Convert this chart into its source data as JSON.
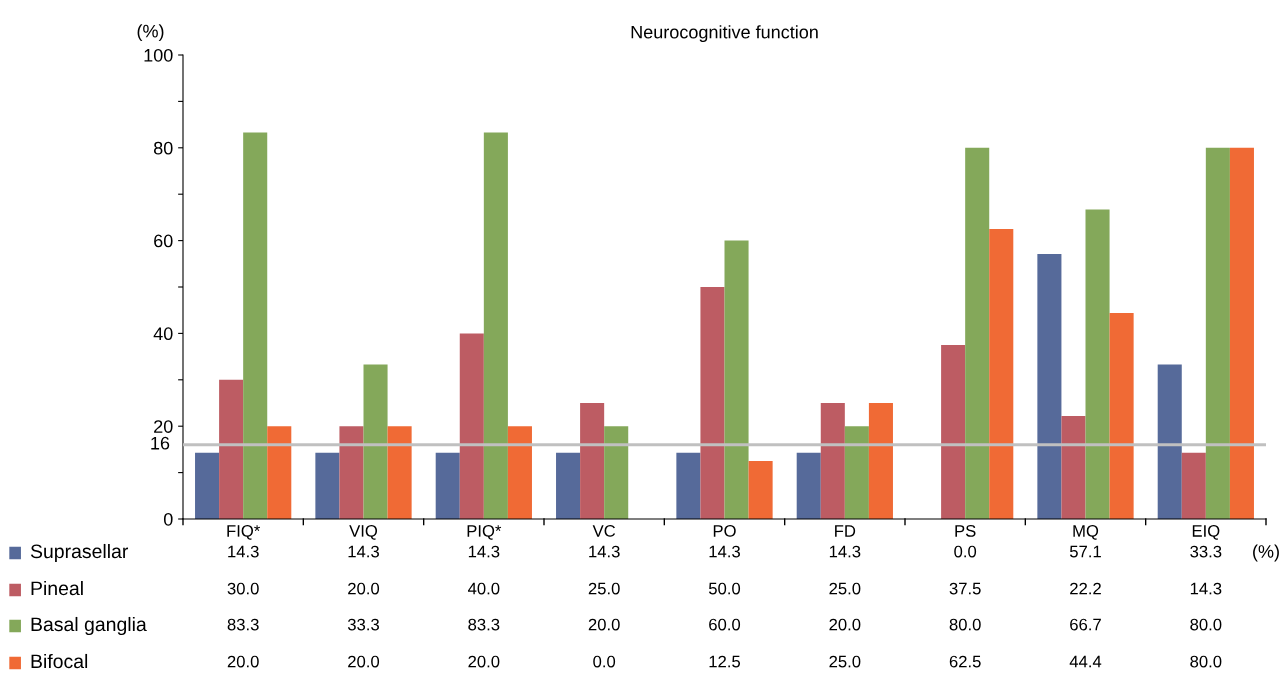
{
  "chart_data": {
    "type": "bar",
    "title": "Neurocognitive function",
    "ylabel": "(%)",
    "categories": [
      "FIQ*",
      "VIQ",
      "PIQ*",
      "VC",
      "PO",
      "FD",
      "PS",
      "MQ",
      "EIQ"
    ],
    "series": [
      {
        "name": "Suprasellar",
        "color": "#566a9a",
        "values": [
          14.3,
          14.3,
          14.3,
          14.3,
          14.3,
          14.3,
          0.0,
          57.1,
          33.3
        ],
        "value_labels": [
          "14.3",
          "14.3",
          "14.3",
          "14.3",
          "14.3",
          "14.3",
          "0.0",
          "57.1",
          "33.3"
        ]
      },
      {
        "name": "Pineal",
        "color": "#bd5c63",
        "values": [
          30.0,
          20.0,
          40.0,
          25.0,
          50.0,
          25.0,
          37.5,
          22.2,
          14.3
        ],
        "value_labels": [
          "30.0",
          "20.0",
          "40.0",
          "25.0",
          "50.0",
          "25.0",
          "37.5",
          "22.2",
          "14.3"
        ]
      },
      {
        "name": "Basal ganglia",
        "color": "#84a85a",
        "values": [
          83.3,
          33.3,
          83.3,
          20.0,
          60.0,
          20.0,
          80.0,
          66.7,
          80.0
        ],
        "value_labels": [
          "83.3",
          "33.3",
          "83.3",
          "20.0",
          "60.0",
          "20.0",
          "80.0",
          "66.7",
          "80.0"
        ]
      },
      {
        "name": "Bifocal",
        "color": "#f06a35",
        "values": [
          20.0,
          20.0,
          20.0,
          0.0,
          12.5,
          25.0,
          62.5,
          44.4,
          80.0
        ],
        "value_labels": [
          "20.0",
          "20.0",
          "20.0",
          "0.0",
          "12.5",
          "25.0",
          "62.5",
          "44.4",
          "80.0"
        ]
      }
    ],
    "ylim": [
      0,
      100
    ],
    "yticks": [
      0,
      {
        "value": 10,
        "label": null
      },
      20,
      {
        "value": 30,
        "label": null
      },
      40,
      {
        "value": 50,
        "label": null
      },
      60,
      {
        "value": 70,
        "label": null
      },
      80,
      {
        "value": 90,
        "label": null
      },
      100
    ],
    "ref_lines": [
      {
        "axis": "y",
        "value": 16,
        "label": "16",
        "color": "#c0c0c0"
      }
    ],
    "annotations": [
      "(%)"
    ],
    "legend": "bottom",
    "grid": false
  }
}
